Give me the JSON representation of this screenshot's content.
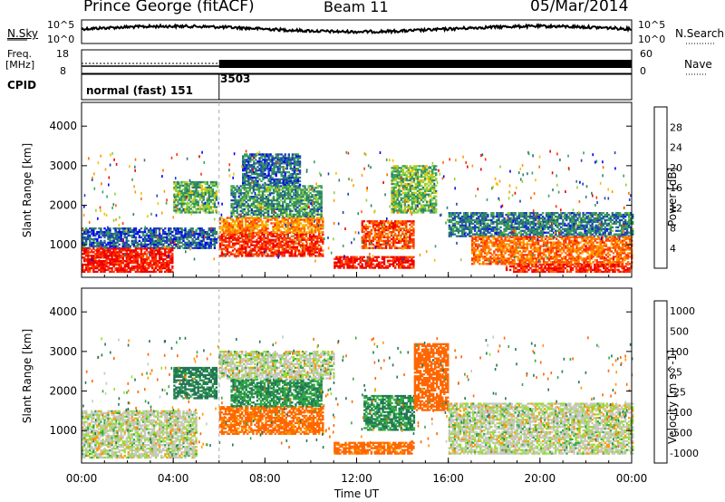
{
  "header": {
    "station": "Prince George (fitACF)",
    "beam": "Beam 11",
    "date": "05/Mar/2014"
  },
  "left_labels": {
    "nsky": "N.Sky",
    "nsky_top_tick": "10^5",
    "nsky_bottom_tick": "10^0",
    "freq": "Freq.",
    "freq_unit": "[MHz]",
    "freq_top_tick": "18",
    "freq_bottom_tick": "8",
    "cpid": "CPID"
  },
  "right_labels": {
    "nsearch": "N.Search",
    "nsearch_top_tick": "10^5",
    "nsearch_bottom_tick": "10^0",
    "nave": "Nave",
    "nave_top_tick": "60",
    "nave_bottom_tick": "0"
  },
  "cpid_segments": [
    {
      "start_hour": 0,
      "label": "normal (fast) 151"
    },
    {
      "start_hour": 6,
      "label": "3503"
    }
  ],
  "colors": {
    "power_scale": [
      "#0000ff",
      "#1f3fbf",
      "#2e7d6d",
      "#3aa15a",
      "#8fd23c",
      "#f2c200",
      "#ff9900",
      "#ff6a00",
      "#ff3300",
      "#ee0000"
    ],
    "velocity_scale": [
      "#2244cc",
      "#227755",
      "#33aa44",
      "#99dd33",
      "#c8c8c0",
      "#ff9900",
      "#ff6600",
      "#ee0000"
    ],
    "gray": "#c8c8c0"
  },
  "chart_data": [
    {
      "type": "heatmap",
      "panel": "power",
      "title": "",
      "ylabel": "Slant Range [km]",
      "xlabel": "",
      "ylim": [
        180,
        4600
      ],
      "xlim": [
        0,
        24
      ],
      "yticks": [
        "1000",
        "2000",
        "3000",
        "4000"
      ],
      "colorbar": {
        "label": "Power [dB]",
        "ticks": [
          "4",
          "8",
          "12",
          "16",
          "20",
          "24",
          "28"
        ],
        "range": [
          0,
          32
        ]
      },
      "regions": [
        {
          "x": [
            0.0,
            5.9
          ],
          "y": [
            900,
            1400
          ],
          "value": 6
        },
        {
          "x": [
            0.0,
            4.0
          ],
          "y": [
            300,
            900
          ],
          "value": 30
        },
        {
          "x": [
            4.0,
            5.9
          ],
          "y": [
            1800,
            2600
          ],
          "value": 12
        },
        {
          "x": [
            6.0,
            10.5
          ],
          "y": [
            700,
            1300
          ],
          "value": 28
        },
        {
          "x": [
            6.0,
            10.5
          ],
          "y": [
            1300,
            1700
          ],
          "value": 22
        },
        {
          "x": [
            6.5,
            10.5
          ],
          "y": [
            1700,
            2500
          ],
          "value": 10
        },
        {
          "x": [
            7.0,
            9.5
          ],
          "y": [
            2500,
            3300
          ],
          "value": 7
        },
        {
          "x": [
            12.2,
            14.5
          ],
          "y": [
            900,
            1600
          ],
          "value": 26
        },
        {
          "x": [
            11.0,
            14.5
          ],
          "y": [
            400,
            700
          ],
          "value": 30
        },
        {
          "x": [
            13.5,
            15.5
          ],
          "y": [
            1800,
            3000
          ],
          "value": 13
        },
        {
          "x": [
            16.0,
            24.0
          ],
          "y": [
            1200,
            1800
          ],
          "value": 8
        },
        {
          "x": [
            17.0,
            24.0
          ],
          "y": [
            500,
            1200
          ],
          "value": 24
        },
        {
          "x": [
            18.5,
            24.0
          ],
          "y": [
            300,
            500
          ],
          "value": 29
        }
      ]
    },
    {
      "type": "heatmap",
      "panel": "velocity",
      "title": "",
      "ylabel": "Slant Range [km]",
      "xlabel": "Time UT",
      "ylim": [
        180,
        4600
      ],
      "xlim": [
        0,
        24
      ],
      "xticks": [
        "00:00",
        "04:00",
        "08:00",
        "12:00",
        "16:00",
        "20:00",
        "00:00"
      ],
      "yticks": [
        "1000",
        "2000",
        "3000",
        "4000"
      ],
      "colorbar": {
        "label": "Velocity [m s^-1]",
        "ticks": [
          "1000",
          "500",
          "100",
          "25",
          "-25",
          "-100",
          "-500",
          "-1000"
        ]
      },
      "regions": [
        {
          "x": [
            0.0,
            5.0
          ],
          "y": [
            300,
            1500
          ],
          "value": 0
        },
        {
          "x": [
            4.0,
            5.9
          ],
          "y": [
            1800,
            2600
          ],
          "value": 150
        },
        {
          "x": [
            6.0,
            10.5
          ],
          "y": [
            900,
            1600
          ],
          "value": -150
        },
        {
          "x": [
            6.5,
            10.5
          ],
          "y": [
            1600,
            2300
          ],
          "value": 100
        },
        {
          "x": [
            6.0,
            11.0
          ],
          "y": [
            2300,
            3000
          ],
          "value": 0
        },
        {
          "x": [
            11.0,
            14.5
          ],
          "y": [
            400,
            700
          ],
          "value": -150
        },
        {
          "x": [
            12.3,
            14.5
          ],
          "y": [
            1000,
            1900
          ],
          "value": 100
        },
        {
          "x": [
            14.5,
            16.0
          ],
          "y": [
            1500,
            3200
          ],
          "value": -200
        },
        {
          "x": [
            16.0,
            24.0
          ],
          "y": [
            400,
            1700
          ],
          "value": 0
        }
      ]
    }
  ]
}
